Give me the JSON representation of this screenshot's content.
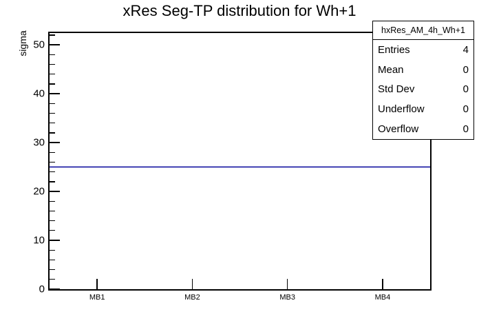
{
  "title": "xRes Seg-TP distribution for Wh+1",
  "y_axis": {
    "label": "sigma"
  },
  "stats_box": {
    "header": "hxRes_AM_4h_Wh+1",
    "rows": [
      {
        "label": "Entries",
        "value": "4"
      },
      {
        "label": "Mean",
        "value": "0"
      },
      {
        "label": "Std Dev",
        "value": "0"
      },
      {
        "label": "Underflow",
        "value": "0"
      },
      {
        "label": "Overflow",
        "value": "0"
      }
    ]
  },
  "colors": {
    "line": "#000099",
    "axis": "#000000",
    "background": "#ffffff"
  },
  "chart_data": {
    "type": "line",
    "title": "xRes Seg-TP distribution for Wh+1",
    "xlabel": "",
    "ylabel": "sigma",
    "categories": [
      "MB1",
      "MB2",
      "MB3",
      "MB4"
    ],
    "values": [
      25,
      25,
      25,
      25
    ],
    "ylim": [
      0,
      52.4
    ],
    "y_major_ticks": [
      0,
      10,
      20,
      30,
      40,
      50
    ],
    "y_minor_step": 2,
    "grid": false,
    "legend": false,
    "annotations": {
      "stats": {
        "name": "hxRes_AM_4h_Wh+1",
        "entries": 4,
        "mean": 0,
        "std_dev": 0,
        "underflow": 0,
        "overflow": 0
      }
    }
  }
}
